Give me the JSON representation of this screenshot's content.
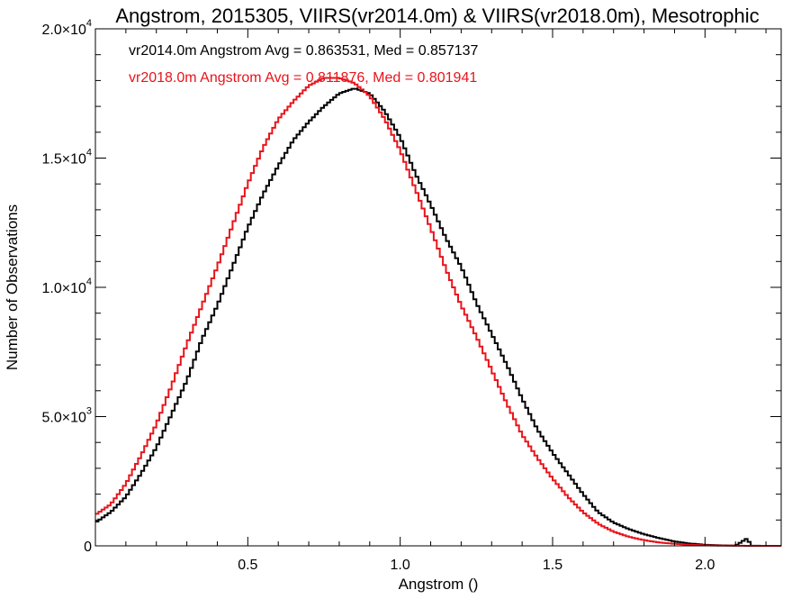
{
  "chart_data": {
    "type": "line",
    "title": "Angstrom, 2015305, VIIRS(vr2014.0m) & VIIRS(vr2018.0m), Mesotrophic",
    "xlabel": "Angstrom ()",
    "ylabel": "Number of Observations",
    "xlim": [
      0.0,
      2.25
    ],
    "ylim": [
      0,
      20000
    ],
    "x_ticks": [
      {
        "value": 0.5,
        "label": "0.5"
      },
      {
        "value": 1.0,
        "label": "1.0"
      },
      {
        "value": 1.5,
        "label": "1.5"
      },
      {
        "value": 2.0,
        "label": "2.0"
      }
    ],
    "y_ticks": [
      {
        "value": 0,
        "mantissa": "0",
        "exp": ""
      },
      {
        "value": 5000,
        "mantissa": "5.0×10",
        "exp": "3"
      },
      {
        "value": 10000,
        "mantissa": "1.0×10",
        "exp": "4"
      },
      {
        "value": 15000,
        "mantissa": "1.5×10",
        "exp": "4"
      },
      {
        "value": 20000,
        "mantissa": "2.0×10",
        "exp": "4"
      }
    ],
    "grid": false,
    "series": [
      {
        "annotation": "vr2014.0m Angstrom Avg = 0.863531, Med = 0.857137",
        "color": "#000000",
        "x": [
          0.0,
          0.05,
          0.1,
          0.15,
          0.2,
          0.25,
          0.3,
          0.35,
          0.4,
          0.45,
          0.5,
          0.55,
          0.6,
          0.65,
          0.7,
          0.75,
          0.8,
          0.85,
          0.9,
          0.95,
          1.0,
          1.05,
          1.1,
          1.15,
          1.2,
          1.25,
          1.3,
          1.35,
          1.4,
          1.45,
          1.5,
          1.55,
          1.6,
          1.65,
          1.7,
          1.75,
          1.8,
          1.85,
          1.9,
          1.95,
          2.0,
          2.05,
          2.1,
          2.14,
          2.15,
          2.2,
          2.25
        ],
        "y": [
          900,
          1300,
          1900,
          2800,
          3800,
          5100,
          6400,
          8000,
          9300,
          10800,
          12300,
          13600,
          14700,
          15700,
          16400,
          17000,
          17500,
          17700,
          17500,
          16800,
          15800,
          14400,
          13200,
          11900,
          10800,
          9400,
          8200,
          7000,
          5700,
          4500,
          3600,
          2800,
          2000,
          1300,
          900,
          650,
          450,
          300,
          170,
          90,
          40,
          20,
          10,
          300,
          5,
          0,
          0
        ]
      },
      {
        "annotation": "vr2018.0m Angstrom Avg = 0.811876, Med = 0.801941",
        "color": "#e8141b",
        "x": [
          0.0,
          0.05,
          0.1,
          0.15,
          0.2,
          0.25,
          0.3,
          0.35,
          0.4,
          0.45,
          0.5,
          0.55,
          0.6,
          0.65,
          0.7,
          0.75,
          0.8,
          0.85,
          0.9,
          0.95,
          1.0,
          1.05,
          1.1,
          1.15,
          1.2,
          1.25,
          1.3,
          1.35,
          1.4,
          1.45,
          1.5,
          1.55,
          1.6,
          1.65,
          1.7,
          1.75,
          1.8,
          1.85,
          1.9,
          1.95,
          2.0,
          2.05,
          2.1,
          2.15,
          2.2,
          2.25
        ],
        "y": [
          1200,
          1600,
          2400,
          3500,
          4700,
          6200,
          7800,
          9300,
          10800,
          12400,
          14000,
          15400,
          16500,
          17200,
          17800,
          18100,
          18100,
          17900,
          17400,
          16500,
          15300,
          13800,
          12300,
          10700,
          9300,
          8100,
          6800,
          5500,
          4300,
          3400,
          2600,
          1900,
          1300,
          850,
          550,
          350,
          220,
          130,
          80,
          40,
          20,
          10,
          5,
          0,
          0,
          0
        ]
      }
    ]
  }
}
